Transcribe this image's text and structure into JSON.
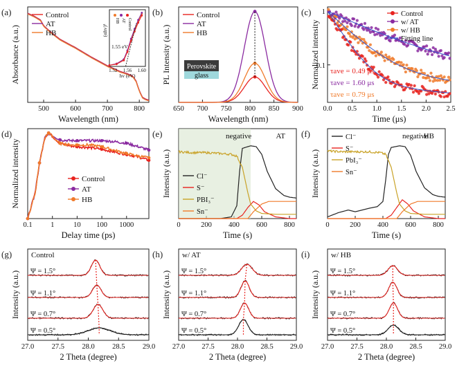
{
  "figure": {
    "colors": {
      "control": "#e8231f",
      "at": "#8a2aa0",
      "hb": "#f07a2a",
      "black": "#222222",
      "dash": "#e8231f"
    }
  },
  "chart_data": [
    {
      "id": "a",
      "panel_label": "(a)",
      "type": "line",
      "xlabel": "Wavelength (nm)",
      "ylabel": "Absorbance (a.u.)",
      "xlim": [
        450,
        830
      ],
      "ylim": [
        0,
        1
      ],
      "xticks": [
        500,
        600,
        700,
        800
      ],
      "legend": [
        "Control",
        "AT",
        "HB"
      ],
      "series": [
        {
          "name": "Control",
          "x": [
            450,
            470,
            490,
            500,
            520,
            550,
            600,
            650,
            700,
            740,
            760,
            780,
            790,
            800,
            810,
            820,
            830
          ],
          "y": [
            0.93,
            0.9,
            0.86,
            0.8,
            0.74,
            0.66,
            0.57,
            0.47,
            0.38,
            0.32,
            0.3,
            0.27,
            0.22,
            0.12,
            0.05,
            0.03,
            0.02
          ]
        },
        {
          "name": "AT",
          "x": [
            450,
            470,
            490,
            500,
            520,
            550,
            600,
            650,
            700,
            740,
            760,
            780,
            790,
            800,
            810,
            820,
            830
          ],
          "y": [
            0.93,
            0.9,
            0.86,
            0.8,
            0.74,
            0.66,
            0.57,
            0.47,
            0.38,
            0.32,
            0.3,
            0.27,
            0.22,
            0.12,
            0.05,
            0.03,
            0.02
          ]
        },
        {
          "name": "HB",
          "x": [
            450,
            470,
            490,
            500,
            520,
            550,
            600,
            650,
            700,
            740,
            760,
            780,
            790,
            800,
            810,
            820,
            830
          ],
          "y": [
            0.93,
            0.9,
            0.86,
            0.8,
            0.74,
            0.66,
            0.57,
            0.47,
            0.38,
            0.32,
            0.3,
            0.27,
            0.22,
            0.12,
            0.05,
            0.03,
            0.02
          ]
        }
      ],
      "inset": {
        "xlabel": "hv (eV)",
        "ylabel": "(αhv)²",
        "annotation": "1.55 eV",
        "xlim": [
          1.51,
          1.61
        ],
        "xticks": [
          1.52,
          1.56,
          1.6
        ],
        "ylim": [
          0,
          1
        ],
        "series": [
          {
            "name": "HB",
            "x": [
              1.51,
              1.53,
              1.55,
              1.56,
              1.57,
              1.58,
              1.59,
              1.6
            ],
            "y": [
              0.02,
              0.05,
              0.12,
              0.28,
              0.48,
              0.66,
              0.82,
              0.95
            ]
          },
          {
            "name": "AT",
            "x": [
              1.51,
              1.53,
              1.55,
              1.56,
              1.57,
              1.58,
              1.59,
              1.6
            ],
            "y": [
              0.02,
              0.05,
              0.13,
              0.29,
              0.5,
              0.68,
              0.84,
              0.97
            ]
          },
          {
            "name": "Control",
            "x": [
              1.51,
              1.53,
              1.55,
              1.56,
              1.57,
              1.58,
              1.59,
              1.6
            ],
            "y": [
              0.02,
              0.04,
              0.11,
              0.26,
              0.46,
              0.63,
              0.79,
              0.92
            ]
          }
        ],
        "legend": [
          "HB",
          "AT",
          "Control"
        ]
      }
    },
    {
      "id": "b",
      "panel_label": "(b)",
      "type": "line",
      "xlabel": "Wavelength (nm)",
      "ylabel": "PL Intensity (a.u.)",
      "xlim": [
        650,
        900
      ],
      "ylim": [
        0,
        1.05
      ],
      "xticks": [
        650,
        700,
        750,
        800,
        850,
        900
      ],
      "legend": [
        "Control",
        "AT",
        "HB"
      ],
      "series": [
        {
          "name": "Control",
          "peak": 810,
          "height": 0.28,
          "width": 22
        },
        {
          "name": "AT",
          "peak": 810,
          "height": 1.0,
          "width": 22
        },
        {
          "name": "HB",
          "peak": 810,
          "height": 0.43,
          "width": 22
        }
      ],
      "schematic": {
        "top": "Perovskite",
        "bottom": "glass"
      }
    },
    {
      "id": "c",
      "panel_label": "(c)",
      "type": "scatter",
      "xlabel": "Time (μs)",
      "ylabel": "Normalized intensity",
      "xlim": [
        0,
        2.5
      ],
      "ylim": [
        0.02,
        1.2
      ],
      "yscale": "log",
      "xticks": [
        0.0,
        0.5,
        1.0,
        1.5,
        2.0,
        2.5
      ],
      "yticks": [
        1,
        0.1
      ],
      "legend": [
        "Control",
        "w/ AT",
        "w/ HB",
        "Fitting line"
      ],
      "series": [
        {
          "name": "Control",
          "tau": 0.49,
          "floor": 0.045
        },
        {
          "name": "w/ AT",
          "tau": 1.6,
          "floor": 0.12
        },
        {
          "name": "w/ HB",
          "tau": 0.79,
          "floor": 0.07
        }
      ],
      "annotations": [
        {
          "text": "τave = 0.49 μs",
          "series": "Control"
        },
        {
          "text": "τave = 1.60 μs",
          "series": "w/ AT"
        },
        {
          "text": "τave = 0.79 μs",
          "series": "w/ HB"
        }
      ]
    },
    {
      "id": "d",
      "panel_label": "(d)",
      "type": "line",
      "xlabel": "Delay time (ps)",
      "ylabel": "Normalized intensity",
      "xlim": [
        0.1,
        8000
      ],
      "xscale": "log",
      "ylim": [
        0,
        1.05
      ],
      "xticks": [
        0.1,
        1,
        10,
        100,
        1000
      ],
      "legend": [
        "Control",
        "AT",
        "HB"
      ],
      "series": [
        {
          "name": "Control",
          "x": [
            0.1,
            0.2,
            0.3,
            0.5,
            0.7,
            1,
            2,
            5,
            10,
            30,
            100,
            300,
            1000,
            3000,
            8000
          ],
          "y": [
            0.0,
            0.3,
            0.65,
            0.95,
            1.0,
            0.96,
            0.88,
            0.85,
            0.84,
            0.83,
            0.81,
            0.78,
            0.75,
            0.72,
            0.68
          ]
        },
        {
          "name": "AT",
          "x": [
            0.1,
            0.2,
            0.3,
            0.5,
            0.7,
            1,
            2,
            5,
            10,
            30,
            100,
            300,
            1000,
            3000,
            8000
          ],
          "y": [
            0.0,
            0.3,
            0.65,
            0.95,
            1.0,
            0.97,
            0.92,
            0.91,
            0.91,
            0.91,
            0.91,
            0.9,
            0.88,
            0.84,
            0.8
          ]
        },
        {
          "name": "HB",
          "x": [
            0.1,
            0.2,
            0.3,
            0.5,
            0.7,
            1,
            2,
            5,
            10,
            30,
            100,
            300,
            1000,
            3000,
            8000
          ],
          "y": [
            0.0,
            0.3,
            0.65,
            0.95,
            1.0,
            0.96,
            0.88,
            0.86,
            0.86,
            0.86,
            0.84,
            0.8,
            0.76,
            0.73,
            0.71
          ]
        }
      ]
    },
    {
      "id": "e",
      "panel_label": "(e)",
      "type": "line",
      "xlabel": "Time (s)",
      "ylabel": "Intensity (a.u.)",
      "xlim": [
        0,
        850
      ],
      "ylim": [
        0,
        1.05
      ],
      "xticks": [
        0,
        200,
        400,
        600,
        800
      ],
      "title": "AT",
      "region_label": "negative",
      "region_end": 520,
      "legend": [
        "Cl⁻",
        "S⁻",
        "PBI₃⁻",
        "Sn⁻"
      ],
      "series": [
        {
          "name": "Cl⁻",
          "color": "black",
          "x": [
            0,
            300,
            380,
            420,
            440,
            460,
            520,
            560,
            600,
            640,
            700,
            760,
            800,
            850
          ],
          "y": [
            0.0,
            0.0,
            0.02,
            0.15,
            0.55,
            0.82,
            0.85,
            0.84,
            0.75,
            0.55,
            0.35,
            0.27,
            0.25,
            0.24
          ]
        },
        {
          "name": "S⁻",
          "color": "control",
          "x": [
            0,
            420,
            460,
            500,
            540,
            580,
            620,
            700,
            800,
            850
          ],
          "y": [
            0.0,
            0.0,
            0.04,
            0.13,
            0.2,
            0.16,
            0.08,
            0.02,
            0.0,
            0.0
          ]
        },
        {
          "name": "PBI₃⁻",
          "color": "gold",
          "x": [
            0,
            100,
            200,
            300,
            380,
            420,
            460,
            480,
            500,
            520,
            560,
            600,
            700,
            850
          ],
          "y": [
            0.78,
            0.77,
            0.77,
            0.76,
            0.75,
            0.73,
            0.6,
            0.45,
            0.3,
            0.17,
            0.09,
            0.06,
            0.05,
            0.05
          ]
        },
        {
          "name": "Sn⁻",
          "color": "hb",
          "x": [
            0,
            500,
            540,
            600,
            650,
            700,
            800,
            850
          ],
          "y": [
            0.0,
            0.0,
            0.08,
            0.17,
            0.2,
            0.2,
            0.2,
            0.2
          ]
        }
      ]
    },
    {
      "id": "f",
      "panel_label": "(f)",
      "type": "line",
      "xlabel": "Time (s)",
      "ylabel": "Intensity (a.u.)",
      "xlim": [
        0,
        850
      ],
      "ylim": [
        0,
        1.05
      ],
      "xticks": [
        0,
        200,
        400,
        600,
        800
      ],
      "title": "HB",
      "region_label": "negative",
      "legend": [
        "Cl⁻",
        "S⁻",
        "PbI₃⁻",
        "Sn⁻"
      ],
      "series": [
        {
          "name": "Cl⁻",
          "color": "black",
          "x": [
            0,
            80,
            150,
            200,
            250,
            300,
            360,
            400,
            420,
            440,
            460,
            520,
            560,
            600,
            640,
            700,
            760,
            800,
            850
          ],
          "y": [
            0.02,
            0.07,
            0.1,
            0.08,
            0.1,
            0.12,
            0.14,
            0.2,
            0.45,
            0.75,
            0.83,
            0.85,
            0.84,
            0.74,
            0.55,
            0.36,
            0.28,
            0.26,
            0.25
          ]
        },
        {
          "name": "S⁻",
          "color": "control",
          "x": [
            0,
            420,
            460,
            500,
            540,
            580,
            620,
            700,
            800,
            850
          ],
          "y": [
            0.0,
            0.0,
            0.04,
            0.13,
            0.22,
            0.17,
            0.09,
            0.02,
            0.0,
            0.0
          ]
        },
        {
          "name": "PbI₃⁻",
          "color": "gold",
          "x": [
            0,
            100,
            200,
            300,
            380,
            420,
            460,
            480,
            500,
            520,
            560,
            600,
            700,
            850
          ],
          "y": [
            0.79,
            0.78,
            0.78,
            0.78,
            0.77,
            0.75,
            0.6,
            0.45,
            0.3,
            0.17,
            0.09,
            0.06,
            0.05,
            0.05
          ]
        },
        {
          "name": "Sn⁻",
          "color": "hb",
          "x": [
            0,
            500,
            540,
            600,
            650,
            700,
            800,
            850
          ],
          "y": [
            0.0,
            0.0,
            0.08,
            0.17,
            0.2,
            0.2,
            0.2,
            0.2
          ]
        }
      ]
    },
    {
      "id": "g",
      "panel_label": "(g)",
      "type": "line",
      "xlabel": "2 Theta (degree)",
      "ylabel": "Intensity (a.u.)",
      "xlim": [
        27.0,
        29.0
      ],
      "xticks": [
        27.0,
        27.5,
        28.0,
        28.5,
        29.0
      ],
      "title": "Control",
      "series": [
        {
          "name": "Ψ = 1.5°",
          "peak": 28.12,
          "height": 0.55,
          "width": 0.07,
          "color": "control"
        },
        {
          "name": "Ψ = 1.1°",
          "peak": 28.14,
          "height": 0.45,
          "width": 0.07,
          "color": "control"
        },
        {
          "name": "Ψ = 0.7°",
          "peak": 28.16,
          "height": 0.5,
          "width": 0.08,
          "color": "control"
        },
        {
          "name": "Ψ = 0.5°",
          "peak": 28.18,
          "height": 0.25,
          "width": 0.18,
          "color": "black"
        }
      ]
    },
    {
      "id": "h",
      "panel_label": "(h)",
      "type": "line",
      "xlabel": "2 Theta (degree)",
      "ylabel": "Intensity (a.u.)",
      "xlim": [
        27.0,
        29.0
      ],
      "xticks": [
        27.0,
        27.5,
        28.0,
        28.5,
        29.0
      ],
      "title": "w/ AT",
      "series": [
        {
          "name": "Ψ = 1.5°",
          "peak": 28.16,
          "height": 0.4,
          "width": 0.09,
          "color": "control"
        },
        {
          "name": "Ψ = 1.1°",
          "peak": 28.13,
          "height": 0.6,
          "width": 0.07,
          "color": "control"
        },
        {
          "name": "Ψ = 0.7°",
          "peak": 28.12,
          "height": 0.55,
          "width": 0.07,
          "color": "control"
        },
        {
          "name": "Ψ = 0.5°",
          "peak": 28.1,
          "height": 0.55,
          "width": 0.08,
          "color": "black"
        }
      ]
    },
    {
      "id": "i",
      "panel_label": "(i)",
      "type": "line",
      "xlabel": "2 Theta (degree)",
      "ylabel": "Intensity (a.u.)",
      "xlim": [
        27.0,
        29.0
      ],
      "xticks": [
        27.0,
        27.5,
        28.0,
        28.5,
        29.0
      ],
      "title": "w/ HB",
      "series": [
        {
          "name": "Ψ = 1.5°",
          "peak": 28.11,
          "height": 0.35,
          "width": 0.08,
          "color": "control"
        },
        {
          "name": "Ψ = 1.1°",
          "peak": 28.11,
          "height": 0.55,
          "width": 0.07,
          "color": "control"
        },
        {
          "name": "Ψ = 0.7°",
          "peak": 28.12,
          "height": 0.55,
          "width": 0.07,
          "color": "control"
        },
        {
          "name": "Ψ = 0.5°",
          "peak": 28.12,
          "height": 0.35,
          "width": 0.09,
          "color": "black"
        }
      ]
    }
  ]
}
